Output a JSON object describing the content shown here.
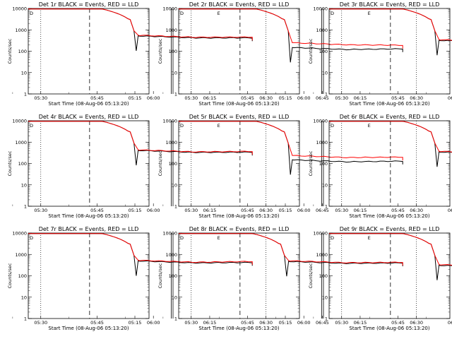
{
  "chart_data": {
    "type": "line",
    "layout": "3x3 grid of panels",
    "y_scale": "log",
    "ylim": [
      1,
      10000
    ],
    "y_ticks": [
      "1",
      "10",
      "100",
      "1000",
      "10000"
    ],
    "ylabel": "Counts/sec",
    "x_ticks": [
      "05:15",
      "05:30",
      "05:45",
      "06:00",
      "06:15",
      "06:30",
      "06:45"
    ],
    "xlim_minutes": [
      13.33,
      45.5
    ],
    "xlabel": "Start Time (08-Aug-06 05:13:20)",
    "legend_text": "BLACK = Events, RED = LLD",
    "series_colors": {
      "events": "#000000",
      "lld": "#ff0000"
    },
    "dotted_lines_x": [
      "05:30",
      "06:30"
    ],
    "dashed_line_x": "05:43",
    "double_solid_lines_x": "06:05",
    "markers": {
      "left": "D",
      "right": "E"
    },
    "panels": [
      {
        "label": "Det 1r",
        "drop_x": 42,
        "end_x": 73,
        "plateau_events": 420,
        "plateau_lld": 450,
        "final_events": 420,
        "final_lld": 460
      },
      {
        "label": "Det 2r",
        "drop_x": 43,
        "end_x": 73,
        "plateau_events": 120,
        "plateau_lld": 200,
        "final_events": 130,
        "final_lld": 190
      },
      {
        "label": "Det 3r",
        "drop_x": 42,
        "end_x": 73,
        "plateau_events": 260,
        "plateau_lld": 280,
        "final_events": 240,
        "final_lld": 280
      },
      {
        "label": "Det 4r",
        "drop_x": 42,
        "end_x": 73,
        "plateau_events": 330,
        "plateau_lld": 350,
        "final_events": 340,
        "final_lld": 370
      },
      {
        "label": "Det 5r",
        "drop_x": 43,
        "end_x": 73,
        "plateau_events": 120,
        "plateau_lld": 190,
        "final_events": 130,
        "final_lld": 200
      },
      {
        "label": "Det 6r",
        "drop_x": 42,
        "end_x": 73,
        "plateau_events": 280,
        "plateau_lld": 300,
        "final_events": 300,
        "final_lld": 320
      },
      {
        "label": "Det 7r",
        "drop_x": 42,
        "end_x": 73,
        "plateau_events": 400,
        "plateau_lld": 430,
        "final_events": 420,
        "final_lld": 470
      },
      {
        "label": "Det 8r",
        "drop_x": 42,
        "end_x": 73,
        "plateau_events": 380,
        "plateau_lld": 410,
        "final_events": 400,
        "final_lld": 430
      },
      {
        "label": "Det 9r",
        "drop_x": 42,
        "end_x": 73,
        "plateau_events": 250,
        "plateau_lld": 270,
        "final_events": 230,
        "final_lld": 290
      }
    ]
  }
}
